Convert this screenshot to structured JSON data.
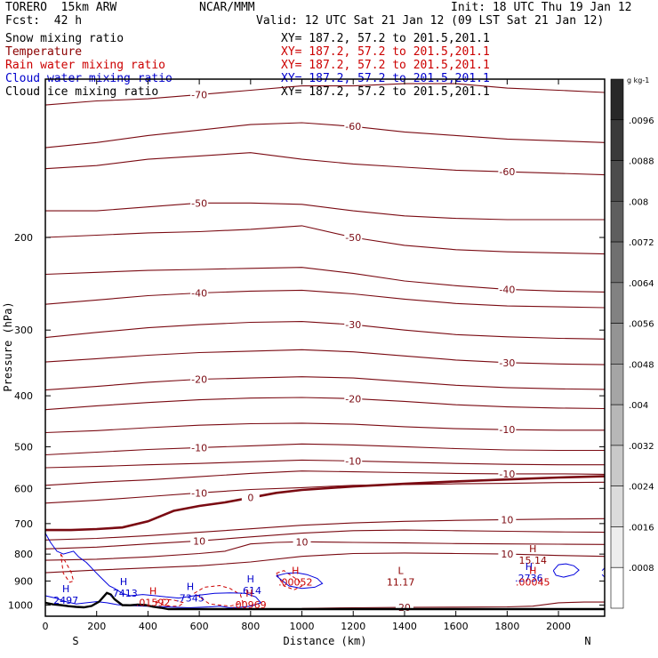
{
  "header": {
    "model": "TORERO  15km ARW",
    "center": "NCAR/MMM",
    "init": "Init: 18 UTC Thu 19 Jan 12",
    "fcst": "Fcst:  42 h",
    "valid": "Valid: 12 UTC Sat 21 Jan 12 (09 LST Sat 21 Jan 12)"
  },
  "fields": [
    {
      "name": "Snow mixing ratio",
      "color": "#000000",
      "xy": "XY= 187.2, 57.2 to 201.5,201.1"
    },
    {
      "name": "Temperature",
      "color": "#8b0000",
      "xy": "XY= 187.2, 57.2 to 201.5,201.1"
    },
    {
      "name": "Rain water mixing ratio",
      "color": "#cc0000",
      "xy": "XY= 187.2, 57.2 to 201.5,201.1"
    },
    {
      "name": "Cloud water mixing ratio",
      "color": "#0000cc",
      "xy": "XY= 187.2, 57.2 to 201.5,201.1"
    },
    {
      "name": "Cloud ice mixing ratio",
      "color": "#000000",
      "xy": "XY= 187.2, 57.2 to 201.5,201.1"
    }
  ],
  "chart_data": {
    "type": "cross-section-contour",
    "xlabel": "Distance (km)",
    "ylabel": "Pressure (hPa)",
    "xlim": [
      0,
      2180
    ],
    "ylim": [
      1050,
      100
    ],
    "y_scale": "log",
    "xticks": [
      0,
      200,
      400,
      600,
      800,
      1000,
      1200,
      1400,
      1600,
      1800,
      2000
    ],
    "yticks": [
      200,
      300,
      400,
      500,
      600,
      700,
      800,
      900,
      1000
    ],
    "end_labels": {
      "left": "S",
      "right": "N"
    },
    "colorbar": {
      "unit": "g kg-1",
      "ticks": [
        ".0096",
        ".0088",
        ".008",
        ".0072",
        ".0064",
        ".0056",
        ".0048",
        ".004",
        ".0032",
        ".0024",
        ".0016",
        ".0008"
      ]
    },
    "terrain": {
      "x": [
        0,
        30,
        60,
        90,
        120,
        150,
        180,
        210,
        240,
        255,
        270,
        300,
        330,
        360,
        390,
        420,
        450,
        480,
        500,
        2180
      ],
      "p": [
        990,
        997,
        1000,
        1005,
        1008,
        1010,
        1004,
        985,
        948,
        955,
        975,
        1000,
        1001,
        998,
        1000,
        1007,
        1012,
        1018,
        1018,
        1018
      ]
    },
    "temperature_contours": [
      {
        "value": -70,
        "x": [
          0,
          200,
          400,
          600,
          800,
          1000,
          1200,
          1400,
          1600,
          1800,
          2000,
          2180
        ],
        "p": [
          112,
          110,
          109,
          107,
          105,
          103,
          103,
          102,
          102,
          104,
          105,
          106
        ]
      },
      {
        "value": -60,
        "x": [
          0,
          200,
          400,
          600,
          800,
          1000,
          1200,
          1400,
          1600,
          1800,
          2000,
          2180
        ],
        "p": [
          135,
          132,
          128,
          125,
          122,
          121,
          123,
          126,
          128,
          130,
          131,
          132
        ]
      },
      {
        "value": -60,
        "x": [
          0,
          200,
          400,
          600,
          800,
          1000,
          1200,
          1400,
          1600,
          1800,
          2000,
          2180
        ],
        "p": [
          148,
          146,
          142,
          140,
          138,
          142,
          145,
          147,
          149,
          150,
          151,
          152
        ]
      },
      {
        "value": -50,
        "x": [
          0,
          200,
          400,
          600,
          800,
          1000,
          1200,
          1400,
          1600,
          1800,
          2000,
          2180
        ],
        "p": [
          178,
          178,
          175,
          172,
          172,
          173,
          178,
          182,
          184,
          185,
          185,
          185
        ]
      },
      {
        "value": -50,
        "x": [
          0,
          200,
          400,
          600,
          800,
          1000,
          1200,
          1400,
          1600,
          1800,
          2000,
          2180
        ],
        "p": [
          200,
          198,
          196,
          195,
          193,
          190,
          200,
          207,
          211,
          213,
          214,
          215
        ]
      },
      {
        "value": -40,
        "x": [
          0,
          200,
          400,
          600,
          800,
          1000,
          1200,
          1400,
          1600,
          1800,
          2000,
          2180
        ],
        "p": [
          235,
          233,
          231,
          230,
          229,
          228,
          234,
          242,
          247,
          251,
          253,
          254
        ]
      },
      {
        "value": -40,
        "x": [
          0,
          200,
          400,
          600,
          800,
          1000,
          1200,
          1400,
          1600,
          1800,
          2000,
          2180
        ],
        "p": [
          268,
          263,
          258,
          255,
          253,
          252,
          256,
          262,
          267,
          270,
          271,
          272
        ]
      },
      {
        "value": -30,
        "x": [
          0,
          200,
          400,
          600,
          800,
          1000,
          1200,
          1400,
          1600,
          1800,
          2000,
          2180
        ],
        "p": [
          310,
          303,
          297,
          293,
          290,
          289,
          293,
          300,
          306,
          309,
          311,
          312
        ]
      },
      {
        "value": -30,
        "x": [
          0,
          200,
          400,
          600,
          800,
          1000,
          1200,
          1400,
          1600,
          1800,
          2000,
          2180
        ],
        "p": [
          345,
          340,
          335,
          331,
          329,
          327,
          330,
          336,
          342,
          346,
          348,
          349
        ]
      },
      {
        "value": -20,
        "x": [
          0,
          200,
          400,
          600,
          800,
          1000,
          1200,
          1400,
          1600,
          1800,
          2000,
          2180
        ],
        "p": [
          390,
          384,
          377,
          372,
          370,
          368,
          370,
          376,
          382,
          386,
          388,
          389
        ]
      },
      {
        "value": -20,
        "x": [
          0,
          200,
          400,
          600,
          800,
          1000,
          1200,
          1400,
          1600,
          1800,
          2000,
          2180
        ],
        "p": [
          425,
          418,
          412,
          407,
          404,
          403,
          405,
          410,
          416,
          420,
          422,
          423
        ]
      },
      {
        "value": -10,
        "x": [
          0,
          200,
          400,
          600,
          800,
          1000,
          1200,
          1400,
          1600,
          1800,
          2000,
          2180
        ],
        "p": [
          470,
          466,
          460,
          455,
          452,
          451,
          453,
          458,
          462,
          464,
          465,
          465
        ]
      },
      {
        "value": -10,
        "x": [
          0,
          200,
          400,
          600,
          800,
          1000,
          1200,
          1400,
          1600,
          1800,
          2000,
          2180
        ],
        "p": [
          518,
          512,
          506,
          502,
          498,
          494,
          496,
          500,
          504,
          507,
          508,
          508
        ]
      },
      {
        "value": -10,
        "x": [
          0,
          200,
          400,
          600,
          800,
          1000,
          1200,
          1400,
          1600,
          1800,
          2000,
          2180
        ],
        "p": [
          548,
          545,
          541,
          538,
          534,
          530,
          532,
          535,
          538,
          540,
          541,
          541
        ]
      },
      {
        "value": -10,
        "x": [
          0,
          200,
          400,
          600,
          800,
          1000,
          1200,
          1400,
          1600,
          1800,
          2000,
          2180
        ],
        "p": [
          592,
          584,
          578,
          570,
          562,
          556,
          558,
          560,
          562,
          563,
          563,
          564
        ]
      },
      {
        "value": -10,
        "x": [
          0,
          200,
          400,
          600,
          800,
          1000,
          1200,
          1400,
          1600,
          1800,
          2000,
          2180
        ],
        "p": [
          640,
          632,
          622,
          612,
          603,
          598,
          592,
          590,
          588,
          587,
          585,
          584
        ]
      },
      {
        "value": 0,
        "x": [
          0,
          100,
          200,
          300,
          400,
          500,
          600,
          700,
          800,
          900,
          1000,
          1200,
          1400,
          1600,
          1800,
          2000,
          2180
        ],
        "p": [
          720,
          720,
          717,
          712,
          693,
          662,
          648,
          638,
          625,
          612,
          604,
          595,
          588,
          582,
          577,
          572,
          569
        ]
      },
      {
        "value": 10,
        "x": [
          0,
          200,
          400,
          600,
          800,
          1000,
          1200,
          1400,
          1600,
          1800,
          2000,
          2180
        ],
        "p": [
          752,
          747,
          738,
          727,
          716,
          705,
          698,
          693,
          690,
          688,
          686,
          685
        ]
      },
      {
        "value": 10,
        "x": [
          0,
          200,
          400,
          600,
          800,
          1000,
          1200,
          1400,
          1600,
          1800,
          2000,
          2180
        ],
        "p": [
          782,
          776,
          765,
          755,
          742,
          730,
          722,
          720,
          722,
          724,
          726,
          727
        ]
      },
      {
        "value": 10,
        "x": [
          0,
          200,
          400,
          600,
          700,
          800,
          900,
          1000,
          1200,
          1400,
          1600,
          1800,
          2000,
          2180
        ],
        "p": [
          822,
          818,
          810,
          798,
          790,
          765,
          760,
          758,
          760,
          762,
          764,
          765,
          766,
          767
        ]
      },
      {
        "value": 10,
        "x": [
          0,
          200,
          400,
          600,
          800,
          1000,
          1200,
          1400,
          1600,
          1800,
          2000,
          2180
        ],
        "p": [
          868,
          858,
          850,
          842,
          828,
          808,
          798,
          796,
          798,
          800,
          805,
          808
        ]
      },
      {
        "value": 20,
        "x": [
          1000,
          1200,
          1400,
          1600,
          1800,
          1900,
          2000,
          2100,
          2180
        ],
        "p": [
          1015,
          1012,
          1010,
          1009,
          1008,
          1005,
          990,
          987,
          987
        ]
      }
    ],
    "rain_contours": [
      {
        "x": [
          60,
          80,
          100,
          110,
          95,
          70,
          60
        ],
        "p": [
          800,
          830,
          865,
          900,
          905,
          870,
          800
        ]
      },
      {
        "x": [
          580,
          620,
          680,
          720,
          760,
          770,
          720,
          640,
          580
        ],
        "p": [
          950,
          925,
          918,
          930,
          955,
          990,
          1005,
          995,
          950
        ]
      },
      {
        "x": [
          900,
          930,
          960,
          990,
          1000,
          970,
          930,
          900
        ],
        "p": [
          870,
          860,
          880,
          900,
          920,
          935,
          920,
          870
        ]
      },
      {
        "x": [
          430,
          460,
          500,
          540,
          520,
          470,
          430
        ],
        "p": [
          985,
          975,
          978,
          990,
          1005,
          1005,
          985
        ]
      }
    ],
    "cloud_water_contours": [
      {
        "x": [
          0,
          20,
          45,
          70,
          110,
          130,
          160,
          190,
          210,
          230,
          250,
          270,
          300,
          330,
          380,
          430,
          470,
          520,
          580,
          620,
          660,
          720,
          780,
          820,
          840,
          800,
          760,
          720,
          680,
          640,
          600,
          560,
          520,
          470,
          420,
          370,
          320,
          280,
          240,
          200,
          160,
          120,
          80,
          40,
          0
        ],
        "p": [
          730,
          760,
          790,
          800,
          790,
          810,
          830,
          860,
          880,
          900,
          920,
          930,
          950,
          960,
          955,
          960,
          965,
          970,
          960,
          955,
          950,
          948,
          950,
          965,
          990,
          1005,
          1010,
          1012,
          1005,
          1008,
          1010,
          1012,
          1010,
          1008,
          1006,
          1004,
          1002,
          998,
          990,
          985,
          990,
          995,
          985,
          970,
          960
        ]
      },
      {
        "x": [
          900,
          940,
          980,
          1020,
          1060,
          1080,
          1050,
          1000,
          950,
          900
        ],
        "p": [
          880,
          870,
          868,
          875,
          890,
          910,
          925,
          930,
          920,
          880
        ]
      },
      {
        "x": [
          1980,
          2000,
          2030,
          2060,
          2080,
          2060,
          2020,
          1990,
          1980
        ],
        "p": [
          860,
          838,
          835,
          842,
          858,
          875,
          885,
          878,
          860
        ]
      },
      {
        "x": [
          2170,
          2180,
          2180,
          2170
        ],
        "p": [
          860,
          850,
          885,
          875
        ]
      }
    ],
    "extrema": [
      {
        "type": "H",
        "value": "2497",
        "x": 80,
        "p": 975,
        "color": "#0000cc"
      },
      {
        "type": "H",
        "value": ".7413",
        "x": 305,
        "p": 945,
        "color": "#0000cc"
      },
      {
        "type": "H",
        "value": ".01592",
        "x": 420,
        "p": 985,
        "color": "#cc0000"
      },
      {
        "type": "H",
        "value": ".7345",
        "x": 565,
        "p": 965,
        "color": "#0000cc"
      },
      {
        "type": "H",
        "value": ".614",
        "x": 800,
        "p": 935,
        "color": "#0000cc"
      },
      {
        "type": "H",
        "value": ".00969",
        "x": 795,
        "p": 995,
        "color": "#cc0000"
      },
      {
        "type": "H",
        "value": ".00052",
        "x": 975,
        "p": 900,
        "color": "#cc0000"
      },
      {
        "type": "L",
        "value": "11.17",
        "x": 1385,
        "p": 900,
        "color": "#8b0000"
      },
      {
        "type": "H",
        "value": "15.14",
        "x": 1900,
        "p": 818,
        "color": "#8b0000"
      },
      {
        "type": "H",
        "value": ".2736",
        "x": 1885,
        "p": 885,
        "color": "#0000cc"
      },
      {
        "type": "H",
        "value": ".00045",
        "x": 1900,
        "p": 900,
        "color": "#cc0000"
      }
    ]
  }
}
